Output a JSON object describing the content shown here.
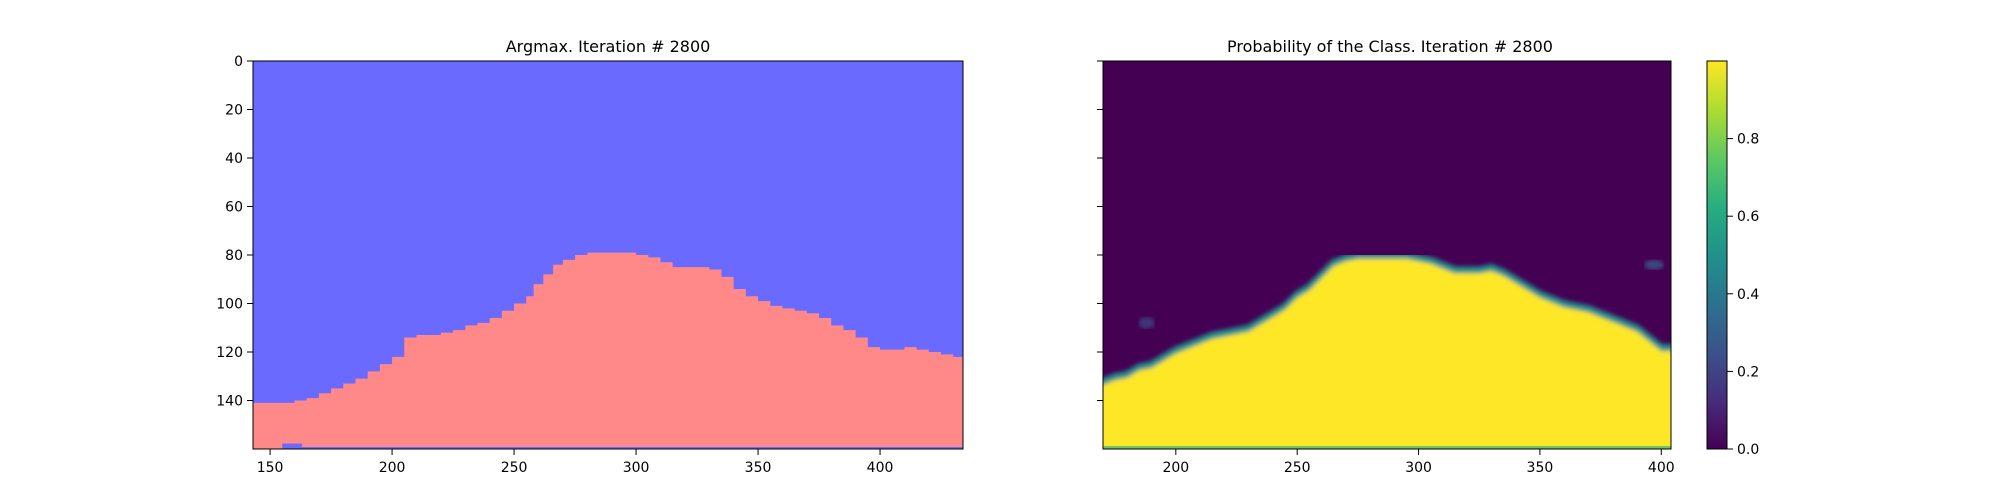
{
  "chart_data": [
    {
      "type": "heatmap",
      "title": "Argmax. Iteration # 2800",
      "xlabel": "",
      "ylabel": "",
      "xlim": [
        143,
        434
      ],
      "ylim": [
        160,
        0
      ],
      "x_ticks": [
        150,
        200,
        250,
        300,
        350,
        400
      ],
      "y_ticks": [
        0,
        20,
        40,
        60,
        80,
        100,
        120,
        140
      ],
      "colors": {
        "upper_class": "#6a6aff",
        "lower_class": "#ff8888"
      },
      "boundary": {
        "x": [
          143,
          155,
          160,
          165,
          170,
          175,
          180,
          185,
          190,
          195,
          200,
          205,
          210,
          215,
          220,
          225,
          230,
          235,
          240,
          245,
          250,
          255,
          258,
          262,
          266,
          270,
          275,
          280,
          285,
          290,
          295,
          300,
          305,
          310,
          315,
          320,
          325,
          330,
          335,
          340,
          345,
          350,
          355,
          360,
          365,
          370,
          375,
          380,
          385,
          390,
          395,
          400,
          405,
          410,
          415,
          420,
          425,
          430,
          434
        ],
        "y": [
          141,
          141,
          140,
          139,
          137,
          135,
          133,
          131,
          128,
          125,
          122,
          114,
          113,
          113,
          112,
          111,
          109,
          108,
          106,
          103,
          100,
          97,
          92,
          88,
          84,
          82,
          80,
          79,
          79,
          79,
          79,
          80,
          81,
          83,
          85,
          85,
          85,
          86,
          89,
          94,
          97,
          99,
          101,
          102,
          103,
          104,
          106,
          109,
          111,
          114,
          118,
          119,
          119,
          118,
          119,
          120,
          121,
          122,
          123
        ]
      },
      "bottom_strip": {
        "row": 159,
        "color": "#6a6aff"
      }
    },
    {
      "type": "heatmap",
      "title": "Probability of the Class. Iteration # 2800",
      "xlabel": "",
      "ylabel": "",
      "xlim": [
        170,
        404
      ],
      "ylim": [
        160,
        0
      ],
      "x_ticks": [
        200,
        250,
        300,
        350,
        400
      ],
      "y_ticks": [
        0,
        20,
        40,
        60,
        80,
        100,
        120,
        140
      ],
      "colorscale": "viridis",
      "value_range": [
        0.0,
        1.0
      ],
      "colorbar_ticks": [
        0.0,
        0.2,
        0.4,
        0.6,
        0.8
      ],
      "colorbar_tick_labels": [
        "0.0",
        "0.2",
        "0.4",
        "0.6",
        "0.8"
      ],
      "colors": {
        "low": "#440154",
        "high": "#fde725",
        "edge": "#21908d"
      },
      "boundary": {
        "x": [
          170,
          175,
          180,
          185,
          190,
          195,
          200,
          205,
          210,
          215,
          220,
          225,
          230,
          235,
          240,
          245,
          250,
          255,
          260,
          265,
          270,
          275,
          280,
          285,
          290,
          295,
          300,
          305,
          310,
          315,
          320,
          325,
          330,
          335,
          340,
          345,
          350,
          355,
          360,
          365,
          370,
          375,
          380,
          385,
          390,
          395,
          400,
          404
        ],
        "y": [
          132,
          130,
          129,
          126,
          125,
          122,
          119,
          117,
          115,
          113,
          112,
          111,
          110,
          107,
          104,
          101,
          96,
          93,
          88,
          83,
          81,
          80,
          80,
          80,
          80,
          80,
          81,
          82,
          84,
          86,
          86,
          86,
          85,
          87,
          90,
          93,
          96,
          98,
          100,
          101,
          102,
          104,
          106,
          108,
          110,
          114,
          118,
          118
        ]
      }
    }
  ]
}
